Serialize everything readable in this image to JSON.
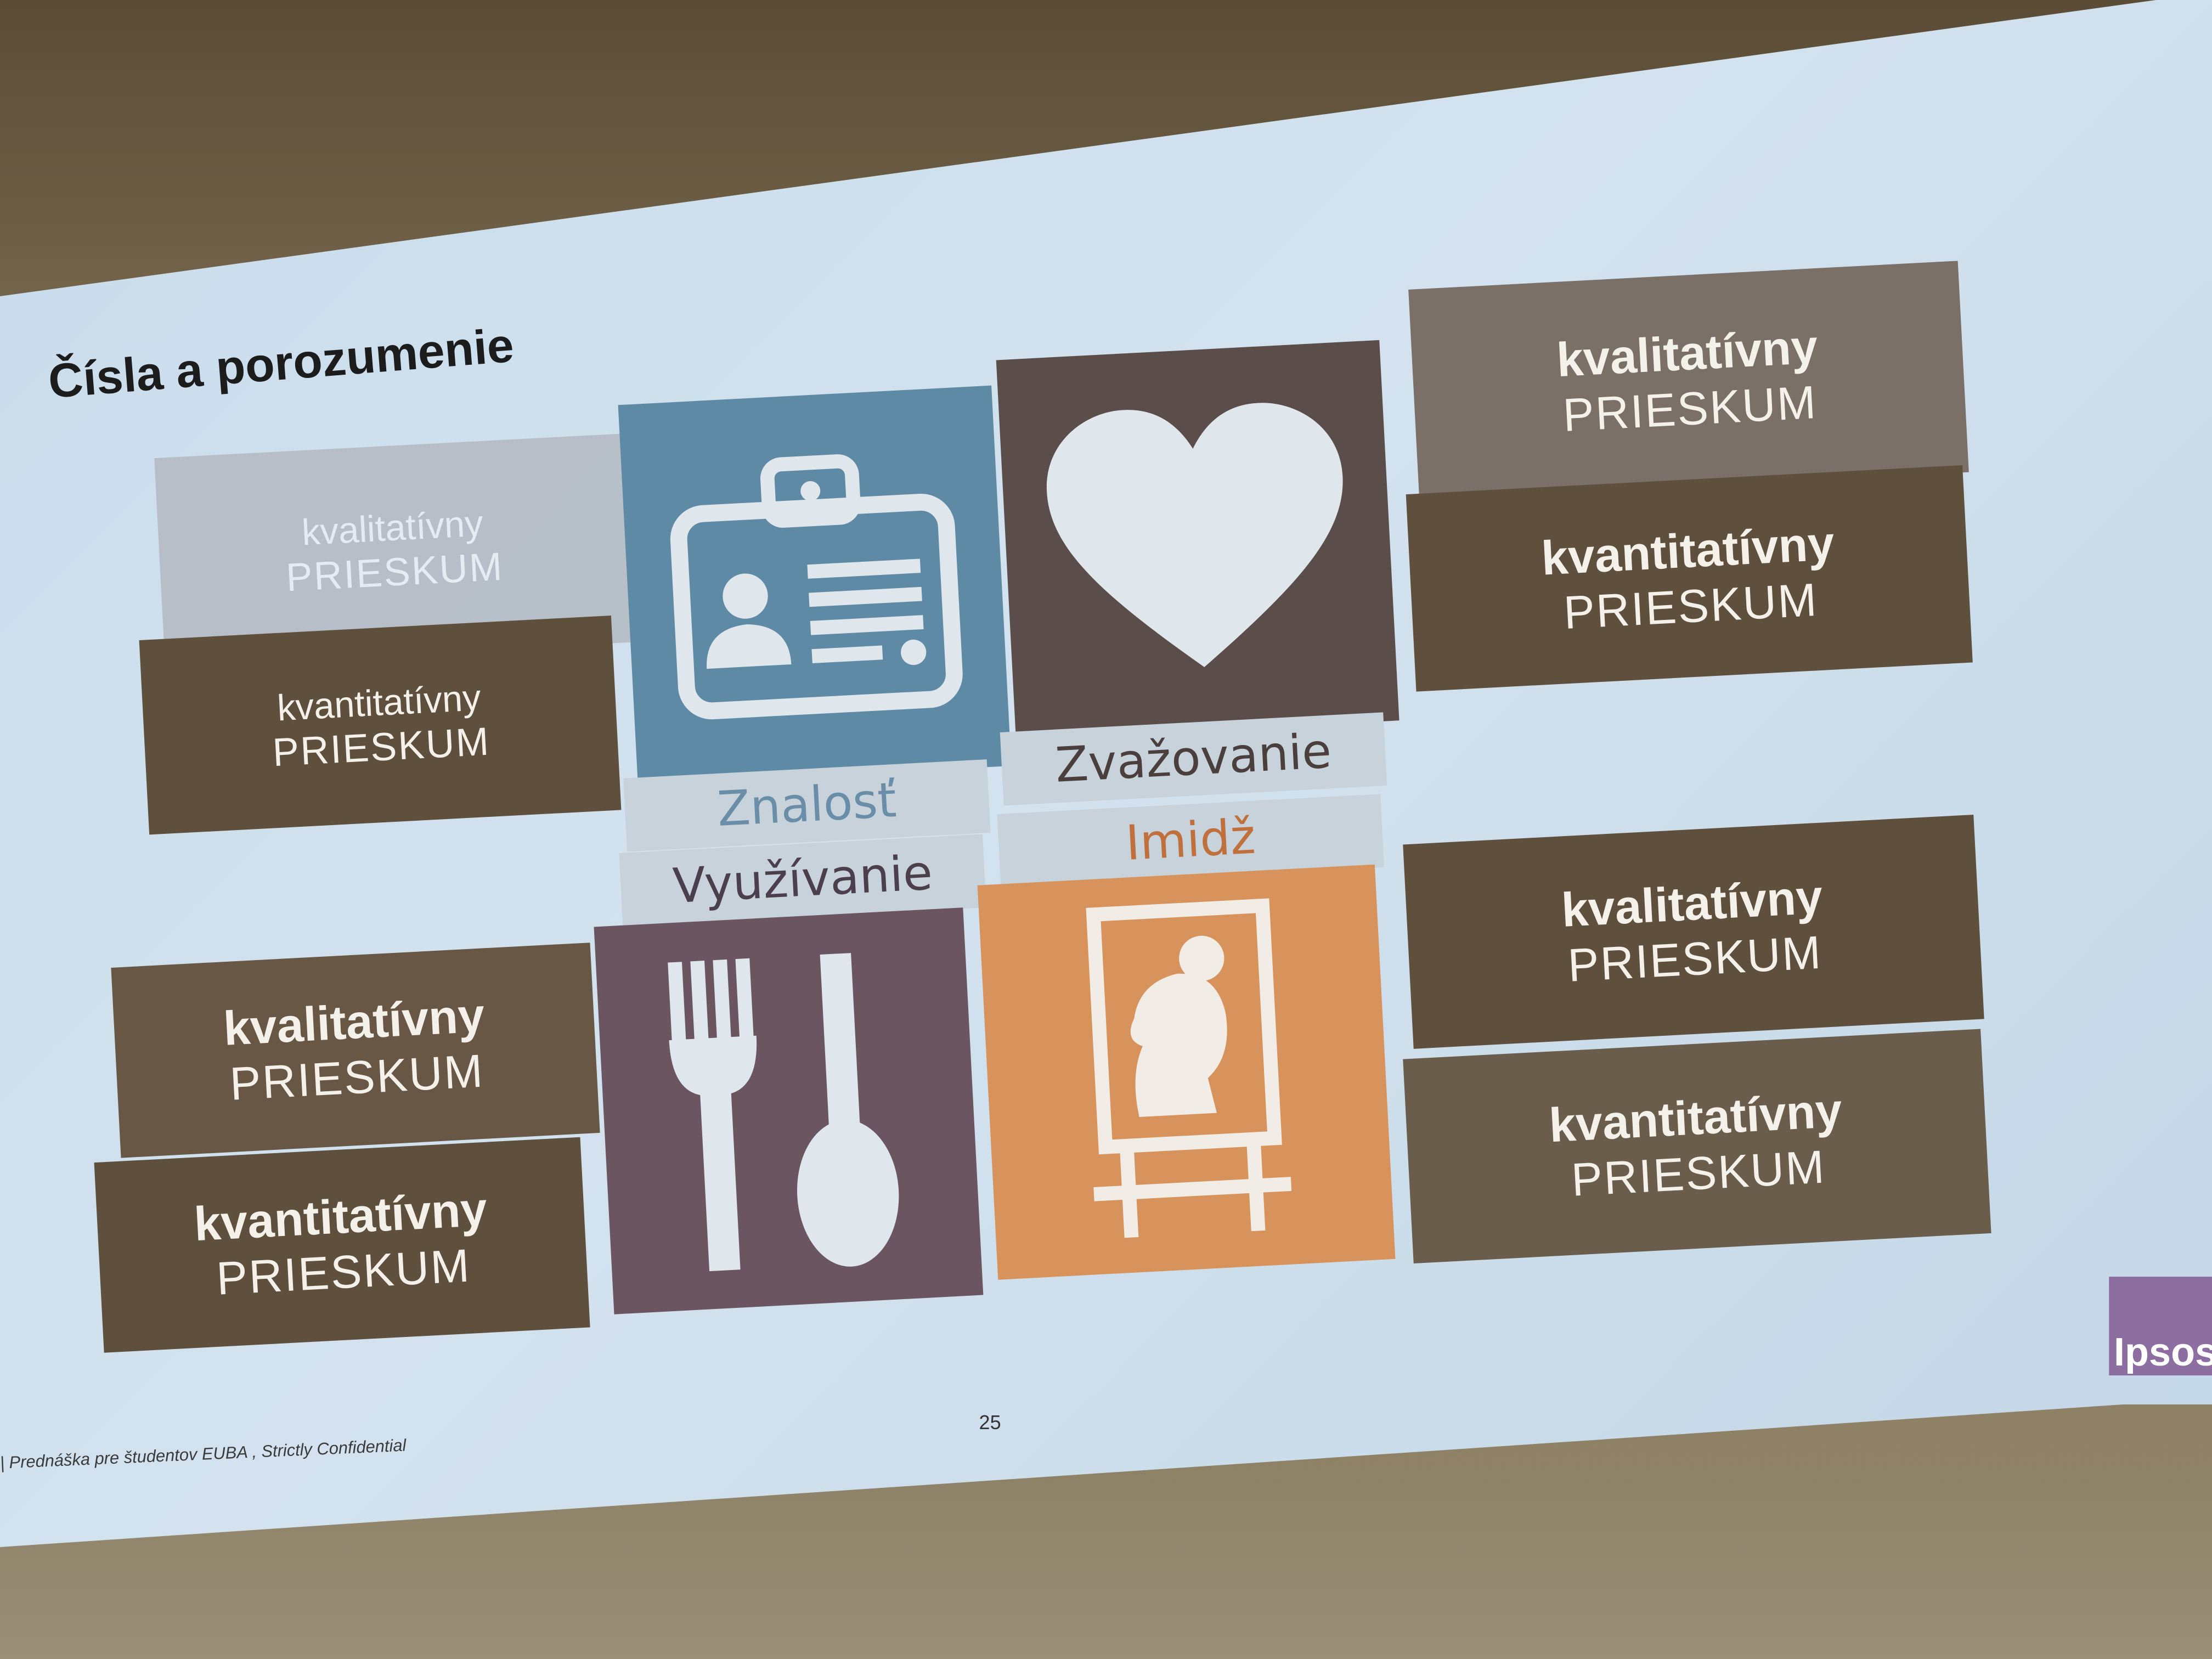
{
  "slide": {
    "title": "Čísla a porozumenie",
    "footer": "| Prednáška pre študentov EUBA , Strictly Confidential",
    "page_number": "25",
    "logo_text": "Ipsos"
  },
  "research_boxes": {
    "top_left_qual": {
      "line1": "kvalitatívny",
      "line2": "PRIESKUM"
    },
    "top_left_quant": {
      "line1": "kvantitatívny",
      "line2": "PRIESKUM"
    },
    "top_right_qual": {
      "line1": "kvalitatívny",
      "line2": "PRIESKUM"
    },
    "top_right_quant": {
      "line1": "kvantitatívny",
      "line2": "PRIESKUM"
    },
    "bottom_left_qual": {
      "line1": "kvalitatívny",
      "line2": "PRIESKUM"
    },
    "bottom_left_quant": {
      "line1": "kvantitatívny",
      "line2": "PRIESKUM"
    },
    "bottom_right_qual": {
      "line1": "kvalitatívny",
      "line2": "PRIESKUM"
    },
    "bottom_right_quant": {
      "line1": "kvantitatívny",
      "line2": "PRIESKUM"
    }
  },
  "tiles": {
    "awareness": {
      "label": "Znalosť",
      "icon": "id-badge-icon",
      "color": "#5f8aa6"
    },
    "consideration": {
      "label": "Zvažovanie",
      "icon": "heart-icon",
      "color": "#5b4d4a"
    },
    "usage": {
      "label": "Využívanie",
      "icon": "fork-spoon-icon",
      "color": "#6b5560"
    },
    "image": {
      "label": "Imidž",
      "icon": "portrait-easel-icon",
      "color": "#d8925c"
    }
  },
  "colors": {
    "brown_box": "#5f4f3d",
    "gray_box": "#7a7068",
    "faded_box": "#b7bcc3",
    "label_awareness": "#6a8ea8",
    "label_consideration": "#4a3f3c",
    "label_usage": "#4a3f4a",
    "label_image": "#c0703c"
  }
}
